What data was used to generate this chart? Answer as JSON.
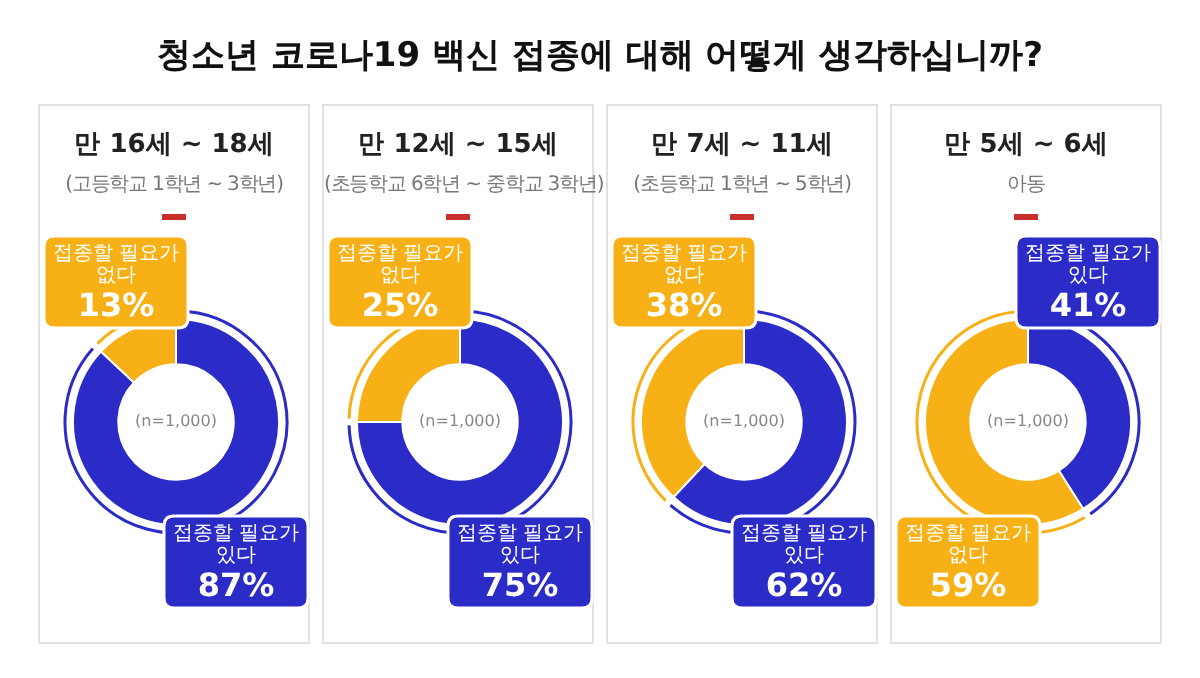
{
  "chart_data": [
    {
      "type": "other",
      "title": "청소년 코로나19 백신 접종에 대해 어떻게 생각하십니까?"
    },
    {
      "type": "donut",
      "title": "만 16세 ~ 18세",
      "subtitle": "(고등학교 1학년 ~ 3학년)",
      "categories": [
        "접종할 필요가 있다",
        "접종할 필요가 없다"
      ],
      "values": [
        87,
        13
      ],
      "colors": [
        "#2b2bc8",
        "#f7b116"
      ],
      "value_labels": [
        "87%",
        "13%"
      ],
      "annotations": [
        "(n=1,000)"
      ]
    },
    {
      "type": "donut",
      "title": "만 12세 ~ 15세",
      "subtitle": "(초등학교 6학년 ~ 중학교 3학년)",
      "categories": [
        "접종할 필요가 있다",
        "접종할 필요가 없다"
      ],
      "values": [
        75,
        25
      ],
      "colors": [
        "#2b2bc8",
        "#f7b116"
      ],
      "value_labels": [
        "75%",
        "25%"
      ],
      "annotations": [
        "(n=1,000)"
      ]
    },
    {
      "type": "donut",
      "title": "만 7세 ~ 11세",
      "subtitle": "(초등학교 1학년 ~ 5학년)",
      "categories": [
        "접종할 필요가 있다",
        "접종할 필요가 없다"
      ],
      "values": [
        62,
        38
      ],
      "colors": [
        "#2b2bc8",
        "#f7b116"
      ],
      "value_labels": [
        "62%",
        "38%"
      ],
      "annotations": [
        "(n=1,000)"
      ]
    },
    {
      "type": "donut",
      "title": "만 5세 ~ 6세",
      "subtitle": "아동",
      "categories": [
        "접종할 필요가 있다",
        "접종할 필요가 없다"
      ],
      "values": [
        41,
        59
      ],
      "colors": [
        "#2b2bc8",
        "#f7b116"
      ],
      "value_labels": [
        "41%",
        "59%"
      ],
      "annotations": [
        "(n=1,000)"
      ]
    }
  ]
}
